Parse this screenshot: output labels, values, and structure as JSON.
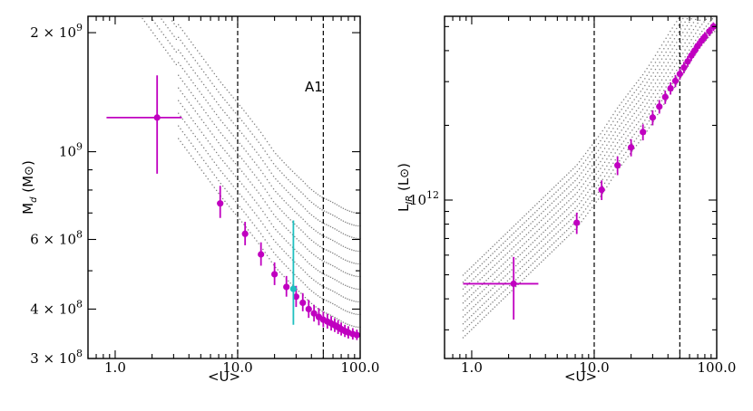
{
  "chart_data": [
    {
      "type": "scatter",
      "panel": "left",
      "title": "",
      "xlabel": "<U>",
      "ylabel": "M_d (M⊙)",
      "xscale": "log",
      "yscale": "log",
      "xlim": [
        0.6,
        100.0
      ],
      "ylim": [
        300000000.0,
        2200000000.0
      ],
      "x_tick_labels": [
        "1.0",
        "10.0",
        "100.0"
      ],
      "x_ticks": [
        1.0,
        10.0,
        100.0
      ],
      "y_ticks": [
        300000000.0,
        400000000.0,
        600000000.0,
        1000000000.0,
        2000000000.0
      ],
      "y_tick_labels": [
        {
          "mant": "3",
          "exp": "8"
        },
        {
          "mant": "4",
          "exp": "8"
        },
        {
          "mant": "6",
          "exp": "8"
        },
        {
          "mant": "",
          "exp": "9"
        },
        {
          "mant": "2",
          "exp": "9"
        }
      ],
      "vlines": [
        10.0,
        50.0
      ],
      "annotation": "A1",
      "colors": {
        "points": "#c000c0",
        "highlight": "#20c0c0",
        "models": "#808080",
        "vline": "#000000"
      },
      "series": [
        {
          "name": "fit points",
          "x": [
            2.2,
            7.2,
            11.5,
            15.5,
            20.0,
            25.0,
            30.0,
            34.0,
            38.0,
            42.0,
            46.0,
            50.0,
            54.0,
            58.0,
            62.0,
            66.0,
            70.0,
            75.0,
            80.0,
            87.0,
            94.0
          ],
          "y": [
            1220000000.0,
            740000000.0,
            620000000.0,
            550000000.0,
            490000000.0,
            455000000.0,
            430000000.0,
            415000000.0,
            400000000.0,
            390000000.0,
            382000000.0,
            376000000.0,
            372000000.0,
            368000000.0,
            364000000.0,
            360000000.0,
            356000000.0,
            352000000.0,
            349000000.0,
            346000000.0,
            344000000.0
          ],
          "xerr_low": [
            1.35,
            0.4,
            0.6,
            0.8,
            1.0,
            1.0,
            1.2,
            1.2,
            1.4,
            1.4,
            1.5,
            1.6,
            1.8,
            2.0,
            2.0,
            2.2,
            2.4,
            2.5,
            2.6,
            2.8,
            3.0
          ],
          "xerr_high": [
            1.3,
            0.4,
            0.6,
            0.8,
            1.0,
            1.0,
            1.2,
            1.2,
            1.4,
            1.4,
            1.5,
            1.6,
            1.8,
            2.0,
            2.0,
            2.2,
            2.4,
            2.5,
            2.6,
            2.8,
            3.0
          ],
          "yerr_low": [
            340000000.0,
            60000000.0,
            40000000.0,
            35000000.0,
            30000000.0,
            25000000.0,
            25000000.0,
            20000000.0,
            20000000.0,
            18000000.0,
            18000000.0,
            16000000.0,
            15000000.0,
            15000000.0,
            14000000.0,
            14000000.0,
            13000000.0,
            12000000.0,
            12000000.0,
            11000000.0,
            10000000.0
          ],
          "yerr_high": [
            340000000.0,
            80000000.0,
            45000000.0,
            40000000.0,
            35000000.0,
            30000000.0,
            28000000.0,
            24000000.0,
            22000000.0,
            20000000.0,
            20000000.0,
            18000000.0,
            17000000.0,
            16000000.0,
            15000000.0,
            15000000.0,
            14000000.0,
            13000000.0,
            13000000.0,
            12000000.0,
            11000000.0
          ]
        },
        {
          "name": "highlighted point",
          "x": [
            28.5
          ],
          "y": [
            450000000.0
          ],
          "xerr_low": [
            1.0
          ],
          "xerr_high": [
            1.0
          ],
          "yerr_low": [
            85000000.0
          ],
          "yerr_high": [
            220000000.0
          ]
        }
      ]
    },
    {
      "type": "scatter",
      "panel": "right",
      "title": "",
      "xlabel": "<U>",
      "ylabel": "L_IR (L⊙)",
      "xscale": "log",
      "yscale": "log",
      "xlim": [
        0.6,
        100.0
      ],
      "ylim": [
        230000000000.0,
        5500000000000.0
      ],
      "x_tick_labels": [
        "1.0",
        "10.0",
        "100.0"
      ],
      "x_ticks": [
        1.0,
        10.0,
        100.0
      ],
      "y_ticks": [
        1000000000000.0
      ],
      "y_tick_labels": [
        {
          "mant": "",
          "exp": "12"
        }
      ],
      "vlines": [
        10.0,
        50.0
      ],
      "colors": {
        "points": "#c000c0",
        "models": "#808080",
        "vline": "#000000"
      },
      "series": [
        {
          "name": "fit points",
          "x": [
            2.2,
            7.2,
            11.5,
            15.5,
            20.0,
            25.0,
            30.0,
            34.0,
            38.0,
            42.0,
            46.0,
            50.0,
            54.0,
            58.0,
            62.0,
            66.0,
            70.0,
            75.0,
            80.0,
            87.0,
            94.0
          ],
          "y": [
            460000000000.0,
            810000000000.0,
            1100000000000.0,
            1380000000000.0,
            1630000000000.0,
            1880000000000.0,
            2150000000000.0,
            2380000000000.0,
            2600000000000.0,
            2820000000000.0,
            3020000000000.0,
            3220000000000.0,
            3420000000000.0,
            3620000000000.0,
            3820000000000.0,
            4000000000000.0,
            4180000000000.0,
            4380000000000.0,
            4550000000000.0,
            4780000000000.0,
            5000000000000.0
          ],
          "xerr_low": [
            1.35,
            0.4,
            0.6,
            0.8,
            1.0,
            1.0,
            1.2,
            1.2,
            1.4,
            1.4,
            1.5,
            1.6,
            1.8,
            2.0,
            2.0,
            2.2,
            2.4,
            2.5,
            2.6,
            2.8,
            3.0
          ],
          "xerr_high": [
            1.3,
            0.4,
            0.6,
            0.8,
            1.0,
            1.0,
            1.2,
            1.2,
            1.4,
            1.4,
            1.5,
            1.6,
            1.8,
            2.0,
            2.0,
            2.2,
            2.4,
            2.5,
            2.6,
            2.8,
            3.0
          ],
          "yerr_low": [
            130000000000.0,
            80000000000.0,
            100000000000.0,
            120000000000.0,
            130000000000.0,
            140000000000.0,
            150000000000.0,
            150000000000.0,
            160000000000.0,
            160000000000.0,
            170000000000.0,
            170000000000.0,
            180000000000.0,
            180000000000.0,
            180000000000.0,
            190000000000.0,
            190000000000.0,
            200000000000.0,
            200000000000.0,
            200000000000.0,
            200000000000.0
          ],
          "yerr_high": [
            130000000000.0,
            80000000000.0,
            100000000000.0,
            120000000000.0,
            130000000000.0,
            140000000000.0,
            150000000000.0,
            150000000000.0,
            160000000000.0,
            160000000000.0,
            170000000000.0,
            170000000000.0,
            180000000000.0,
            180000000000.0,
            180000000000.0,
            190000000000.0,
            190000000000.0,
            200000000000.0,
            200000000000.0,
            200000000000.0,
            200000000000.0
          ]
        }
      ]
    }
  ]
}
